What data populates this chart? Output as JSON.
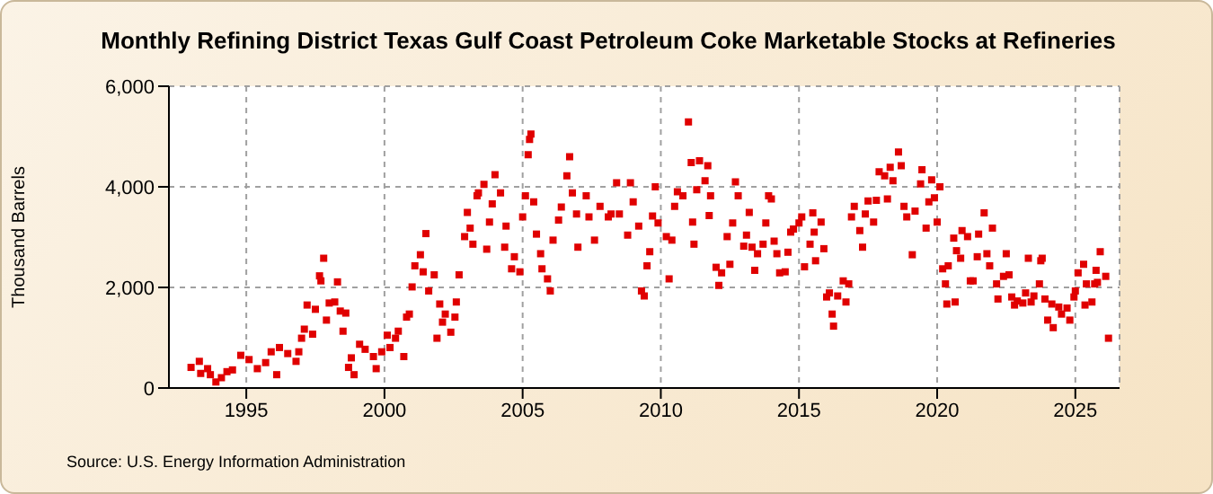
{
  "chart_data": {
    "type": "scatter",
    "title": "Monthly Refining District Texas Gulf Coast Petroleum Coke Marketable Stocks at Refineries",
    "ylabel": "Thousand Barrels",
    "annotations": [
      "Source: U.S. Energy Information Administration"
    ],
    "xlim": [
      1992.2,
      2026.6
    ],
    "xticks": [
      {
        "value": 1995,
        "label": "1995"
      },
      {
        "value": 2000,
        "label": "2000"
      },
      {
        "value": 2005,
        "label": "2005"
      },
      {
        "value": 2010,
        "label": "2010"
      },
      {
        "value": 2015,
        "label": "2015"
      },
      {
        "value": 2020,
        "label": "2020"
      },
      {
        "value": 2025,
        "label": "2025"
      }
    ],
    "ylim": [
      0,
      6000
    ],
    "yticks": [
      {
        "value": 0,
        "label": "0"
      },
      {
        "value": 2000,
        "label": "2,000"
      },
      {
        "value": 4000,
        "label": "4,000"
      },
      {
        "value": 6000,
        "label": "6,000"
      }
    ],
    "grid": true,
    "legend": false,
    "marker": "square",
    "series": [
      {
        "color": "#e00000",
        "x": [
          1993.0,
          1993.3,
          1993.35,
          1993.6,
          1993.7,
          1993.9,
          1994.1,
          1994.3,
          1994.5,
          1994.8,
          1995.1,
          1995.4,
          1995.7,
          1995.9,
          1996.1,
          1996.2,
          1996.5,
          1996.8,
          1996.9,
          1997.0,
          1997.1,
          1997.2,
          1997.4,
          1997.5,
          1997.65,
          1997.7,
          1997.8,
          1997.9,
          1998.0,
          1998.2,
          1998.3,
          1998.4,
          1998.5,
          1998.6,
          1998.7,
          1998.8,
          1998.9,
          1999.1,
          1999.3,
          1999.6,
          1999.7,
          1999.9,
          2000.1,
          2000.2,
          2000.4,
          2000.5,
          2000.7,
          2000.8,
          2000.9,
          2001.0,
          2001.1,
          2001.3,
          2001.4,
          2001.5,
          2001.6,
          2001.8,
          2001.9,
          2002.0,
          2002.1,
          2002.2,
          2002.4,
          2002.55,
          2002.6,
          2002.7,
          2002.9,
          2003.0,
          2003.1,
          2003.2,
          2003.35,
          2003.4,
          2003.6,
          2003.7,
          2003.8,
          2003.9,
          2004.0,
          2004.2,
          2004.35,
          2004.4,
          2004.6,
          2004.7,
          2004.9,
          2005.0,
          2005.1,
          2005.2,
          2005.25,
          2005.3,
          2005.4,
          2005.5,
          2005.65,
          2005.7,
          2005.9,
          2006.0,
          2006.1,
          2006.3,
          2006.4,
          2006.6,
          2006.7,
          2006.8,
          2006.95,
          2007.0,
          2007.3,
          2007.4,
          2007.6,
          2007.8,
          2008.1,
          2008.2,
          2008.4,
          2008.5,
          2008.8,
          2008.9,
          2009.0,
          2009.2,
          2009.3,
          2009.4,
          2009.5,
          2009.6,
          2009.7,
          2009.8,
          2009.9,
          2010.2,
          2010.3,
          2010.4,
          2010.5,
          2010.6,
          2010.8,
          2011.0,
          2011.1,
          2011.15,
          2011.2,
          2011.3,
          2011.4,
          2011.6,
          2011.7,
          2011.75,
          2011.8,
          2012.0,
          2012.1,
          2012.2,
          2012.4,
          2012.5,
          2012.6,
          2012.7,
          2012.8,
          2013.0,
          2013.1,
          2013.2,
          2013.3,
          2013.4,
          2013.5,
          2013.7,
          2013.8,
          2013.9,
          2014.0,
          2014.1,
          2014.2,
          2014.3,
          2014.5,
          2014.6,
          2014.7,
          2014.8,
          2015.0,
          2015.1,
          2015.2,
          2015.4,
          2015.5,
          2015.55,
          2015.6,
          2015.8,
          2015.9,
          2016.0,
          2016.1,
          2016.2,
          2016.25,
          2016.4,
          2016.6,
          2016.7,
          2016.8,
          2016.9,
          2017.0,
          2017.2,
          2017.3,
          2017.4,
          2017.5,
          2017.7,
          2017.8,
          2017.9,
          2018.1,
          2018.2,
          2018.3,
          2018.4,
          2018.6,
          2018.7,
          2018.8,
          2018.9,
          2019.1,
          2019.2,
          2019.4,
          2019.45,
          2019.6,
          2019.7,
          2019.8,
          2019.9,
          2020.0,
          2020.1,
          2020.2,
          2020.3,
          2020.35,
          2020.4,
          2020.6,
          2020.65,
          2020.7,
          2020.85,
          2020.9,
          2021.1,
          2021.2,
          2021.3,
          2021.45,
          2021.5,
          2021.7,
          2021.8,
          2021.9,
          2022.0,
          2022.15,
          2022.2,
          2022.4,
          2022.5,
          2022.6,
          2022.7,
          2022.8,
          2022.9,
          2023.1,
          2023.2,
          2023.3,
          2023.4,
          2023.5,
          2023.7,
          2023.75,
          2023.8,
          2023.9,
          2024.0,
          2024.15,
          2024.2,
          2024.4,
          2024.5,
          2024.7,
          2024.8,
          2024.95,
          2025.0,
          2025.1,
          2025.3,
          2025.35,
          2025.4,
          2025.6,
          2025.7,
          2025.75,
          2025.8,
          2025.9,
          2026.1,
          2026.2
        ],
        "values": [
          410,
          530,
          290,
          385,
          265,
          120,
          205,
          325,
          360,
          650,
          565,
          385,
          505,
          720,
          265,
          805,
          685,
          530,
          720,
          990,
          1170,
          1650,
          1070,
          1565,
          2230,
          2130,
          2580,
          1350,
          1690,
          1710,
          2110,
          1530,
          1130,
          1490,
          410,
          600,
          265,
          870,
          770,
          625,
          385,
          720,
          1050,
          805,
          990,
          1130,
          625,
          1410,
          1470,
          2010,
          2430,
          2650,
          2310,
          3070,
          1930,
          2250,
          990,
          1670,
          1310,
          1470,
          1110,
          1410,
          1710,
          2250,
          3010,
          3490,
          3180,
          2860,
          3820,
          3880,
          4050,
          2760,
          3300,
          3660,
          4240,
          3880,
          2800,
          3220,
          2370,
          2610,
          2310,
          3400,
          3820,
          4640,
          4940,
          5050,
          3700,
          3060,
          2670,
          2370,
          2170,
          1930,
          2940,
          3340,
          3600,
          4220,
          4600,
          3880,
          3460,
          2800,
          3820,
          3400,
          2940,
          3610,
          3400,
          3460,
          4080,
          3460,
          3040,
          4080,
          3700,
          3220,
          1930,
          1830,
          2430,
          2710,
          3420,
          4000,
          3280,
          3010,
          2170,
          2940,
          3610,
          3900,
          3820,
          5290,
          4480,
          3300,
          2860,
          3940,
          4520,
          4120,
          4420,
          3430,
          3820,
          2400,
          2040,
          2290,
          3010,
          2460,
          3280,
          4100,
          3820,
          2820,
          3040,
          3490,
          2800,
          2340,
          2670,
          2860,
          3280,
          3820,
          3760,
          2920,
          2670,
          2290,
          2310,
          2700,
          3100,
          3160,
          3280,
          3400,
          2410,
          2860,
          3480,
          3100,
          2530,
          3300,
          2770,
          1810,
          1890,
          1470,
          1230,
          1830,
          2130,
          1710,
          2070,
          3400,
          3610,
          3130,
          2800,
          3460,
          3720,
          3300,
          3730,
          4300,
          4220,
          3760,
          4390,
          4120,
          4690,
          4420,
          3610,
          3400,
          2650,
          3520,
          4060,
          4340,
          3180,
          3700,
          4140,
          3780,
          3300,
          4000,
          2370,
          2070,
          1670,
          2430,
          2980,
          1710,
          2730,
          2580,
          3130,
          3010,
          2130,
          2130,
          2610,
          3060,
          3480,
          2670,
          2430,
          3180,
          2070,
          1770,
          2220,
          2670,
          2250,
          1810,
          1650,
          1730,
          1690,
          1890,
          2580,
          1710,
          1830,
          2070,
          2530,
          2580,
          1770,
          1350,
          1670,
          1200,
          1610,
          1470,
          1590,
          1350,
          1810,
          1930,
          2290,
          2460,
          1650,
          2070,
          1710,
          2070,
          2340,
          2100,
          2710,
          2220,
          990
        ]
      }
    ]
  }
}
